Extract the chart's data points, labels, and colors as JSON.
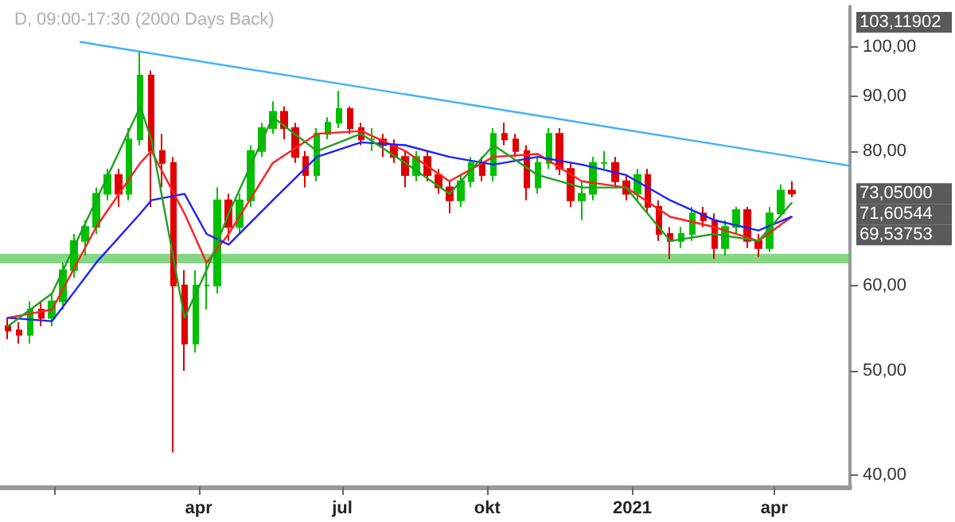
{
  "chart_data": {
    "type": "candlestick",
    "title": "D, 09:00-17:30 (2000 Days Back)",
    "x": [
      "2019-12-02",
      "2019-12-09",
      "2019-12-16",
      "2019-12-23",
      "2019-12-30",
      "2020-01-06",
      "2020-01-13",
      "2020-01-20",
      "2020-01-27",
      "2020-02-03",
      "2020-02-10",
      "2020-02-17",
      "2020-02-24",
      "2020-03-02",
      "2020-03-09",
      "2020-03-16",
      "2020-03-23",
      "2020-03-30",
      "2020-04-06",
      "2020-04-13",
      "2020-04-20",
      "2020-04-27",
      "2020-05-04",
      "2020-05-11",
      "2020-05-18",
      "2020-05-25",
      "2020-06-01",
      "2020-06-08",
      "2020-06-15",
      "2020-06-22",
      "2020-06-29",
      "2020-07-06",
      "2020-07-13",
      "2020-07-20",
      "2020-07-27",
      "2020-08-03",
      "2020-08-10",
      "2020-08-17",
      "2020-08-24",
      "2020-08-31",
      "2020-09-07",
      "2020-09-14",
      "2020-09-21",
      "2020-09-28",
      "2020-10-05",
      "2020-10-12",
      "2020-10-19",
      "2020-10-26",
      "2020-11-02",
      "2020-11-09",
      "2020-11-16",
      "2020-11-23",
      "2020-11-30",
      "2020-12-07",
      "2020-12-14",
      "2020-12-21",
      "2020-12-28",
      "2021-01-04",
      "2021-01-11",
      "2021-01-18",
      "2021-01-25",
      "2021-02-01",
      "2021-02-08",
      "2021-02-15",
      "2021-02-22",
      "2021-03-01",
      "2021-03-08",
      "2021-03-15",
      "2021-03-22",
      "2021-03-29",
      "2021-04-05",
      "2021-04-12"
    ],
    "ohlc": [
      [
        55,
        56,
        53.5,
        54.5
      ],
      [
        54.5,
        55.5,
        53,
        54
      ],
      [
        54,
        58,
        53,
        57
      ],
      [
        57,
        58,
        55,
        56
      ],
      [
        56,
        59,
        55,
        58
      ],
      [
        58,
        63,
        57,
        62
      ],
      [
        62,
        67,
        61,
        66
      ],
      [
        66,
        69,
        64,
        68
      ],
      [
        68,
        74,
        67,
        73
      ],
      [
        73,
        77,
        72,
        76
      ],
      [
        76,
        77,
        71,
        73
      ],
      [
        73,
        84,
        72,
        82
      ],
      [
        82,
        99,
        81,
        94
      ],
      [
        94,
        95,
        71,
        80
      ],
      [
        80,
        83,
        74,
        78
      ],
      [
        78,
        79,
        42,
        60
      ],
      [
        60,
        62,
        50,
        53
      ],
      [
        53,
        62,
        52,
        60
      ],
      [
        60,
        63,
        57,
        60
      ],
      [
        60,
        74,
        59,
        72
      ],
      [
        72,
        73,
        66,
        68
      ],
      [
        68,
        73,
        67,
        72
      ],
      [
        72,
        81,
        71,
        80
      ],
      [
        80,
        85,
        79,
        84
      ],
      [
        84,
        89,
        83,
        87
      ],
      [
        87,
        88,
        82,
        84
      ],
      [
        84,
        85,
        78,
        79
      ],
      [
        79,
        80,
        74,
        76
      ],
      [
        76,
        84,
        75,
        83
      ],
      [
        83,
        86,
        82,
        85
      ],
      [
        85,
        91,
        84,
        87.5
      ],
      [
        87.5,
        88,
        83,
        84
      ],
      [
        84,
        85,
        81,
        82
      ],
      [
        82,
        84,
        80,
        82
      ],
      [
        82,
        83,
        79,
        81
      ],
      [
        81,
        82,
        78,
        79
      ],
      [
        79,
        80,
        74,
        76
      ],
      [
        76,
        80,
        75,
        79
      ],
      [
        79,
        80,
        75,
        76
      ],
      [
        76,
        77,
        73,
        74
      ],
      [
        74,
        75,
        70,
        72
      ],
      [
        72,
        76,
        71,
        75
      ],
      [
        75,
        79,
        74,
        78
      ],
      [
        78,
        79,
        75,
        76
      ],
      [
        76,
        84,
        75,
        83
      ],
      [
        83,
        85,
        81,
        82
      ],
      [
        82,
        83,
        79,
        80
      ],
      [
        80,
        81,
        72,
        74
      ],
      [
        74,
        79,
        73,
        78
      ],
      [
        78,
        84,
        77,
        83
      ],
      [
        83,
        84,
        76,
        77
      ],
      [
        77,
        78,
        71,
        72
      ],
      [
        72,
        75,
        69,
        73
      ],
      [
        73,
        79,
        72,
        78
      ],
      [
        78,
        80,
        77,
        78
      ],
      [
        78,
        79,
        74,
        75
      ],
      [
        75,
        76,
        72,
        73
      ],
      [
        73,
        77,
        72,
        76
      ],
      [
        76,
        77,
        70,
        71
      ],
      [
        71,
        72,
        66,
        67
      ],
      [
        67,
        68,
        63.5,
        66
      ],
      [
        66,
        68,
        65,
        67
      ],
      [
        67,
        71,
        66,
        70
      ],
      [
        70,
        71,
        68,
        69
      ],
      [
        69,
        70,
        63.5,
        65
      ],
      [
        65,
        69,
        64,
        68
      ],
      [
        68,
        71,
        67,
        70.5
      ],
      [
        70.5,
        71,
        65,
        66
      ],
      [
        66,
        67,
        63.8,
        65
      ],
      [
        65,
        71,
        64.5,
        70
      ],
      [
        70,
        74.5,
        69.5,
        73.5
      ],
      [
        73.5,
        75,
        72.5,
        73.05
      ]
    ],
    "colors": [
      "#e00000",
      "#e00000",
      "#00c000",
      "#e00000",
      "#00c000",
      "#00c000",
      "#00c000",
      "#00c000",
      "#00c000",
      "#00c000",
      "#e00000",
      "#00c000",
      "#00c000",
      "#e00000",
      "#e00000",
      "#e00000",
      "#e00000",
      "#00c000",
      "#00c000",
      "#00c000",
      "#e00000",
      "#00c000",
      "#00c000",
      "#00c000",
      "#00c000",
      "#e00000",
      "#e00000",
      "#e00000",
      "#00c000",
      "#00c000",
      "#00c000",
      "#e00000",
      "#e00000",
      "#00c000",
      "#e00000",
      "#e00000",
      "#e00000",
      "#00c000",
      "#e00000",
      "#e00000",
      "#e00000",
      "#00c000",
      "#00c000",
      "#e00000",
      "#00c000",
      "#e00000",
      "#e00000",
      "#e00000",
      "#00c000",
      "#00c000",
      "#e00000",
      "#e00000",
      "#00c000",
      "#00c000",
      "#00c000",
      "#e00000",
      "#e00000",
      "#00c000",
      "#e00000",
      "#e00000",
      "#e00000",
      "#00c000",
      "#00c000",
      "#e00000",
      "#e00000",
      "#00c000",
      "#00c000",
      "#e00000",
      "#e00000",
      "#00c000",
      "#00c000",
      "#e00000"
    ],
    "series": [
      {
        "type": "line",
        "color": "#ff2020",
        "x": [
          "2019-12-02",
          "2019-12-30",
          "2020-01-27",
          "2020-02-24",
          "2020-03-02",
          "2020-03-23",
          "2020-04-06",
          "2020-04-20",
          "2020-05-18",
          "2020-06-15",
          "2020-07-13",
          "2020-08-10",
          "2020-09-07",
          "2020-10-05",
          "2020-11-02",
          "2020-11-30",
          "2020-12-28",
          "2021-01-25",
          "2021-02-22",
          "2021-03-22",
          "2021-04-12"
        ],
        "values": [
          56,
          57,
          68,
          78,
          80,
          70,
          63,
          67,
          78,
          83,
          83.5,
          80,
          75,
          79,
          79.5,
          75,
          74,
          69.5,
          68,
          66,
          69.5
        ]
      },
      {
        "type": "line",
        "color": "#2020ff",
        "x": [
          "2019-12-02",
          "2019-12-30",
          "2020-01-27",
          "2020-02-24",
          "2020-03-02",
          "2020-03-23",
          "2020-04-06",
          "2020-04-20",
          "2020-05-18",
          "2020-06-15",
          "2020-07-13",
          "2020-08-10",
          "2020-09-07",
          "2020-10-05",
          "2020-11-02",
          "2020-11-30",
          "2020-12-28",
          "2021-01-25",
          "2021-02-22",
          "2021-03-22",
          "2021-04-12"
        ],
        "values": [
          56,
          55.6,
          63,
          70,
          72,
          73,
          67,
          65.5,
          72,
          79,
          81.5,
          81,
          79,
          77.7,
          79,
          77.7,
          76,
          72,
          69,
          67.5,
          69.5
        ]
      },
      {
        "type": "line",
        "color": "#20a020",
        "x": [
          "2019-12-02",
          "2019-12-30",
          "2020-01-27",
          "2020-02-24",
          "2020-03-02",
          "2020-03-23",
          "2020-04-06",
          "2020-04-20",
          "2020-05-18",
          "2020-06-15",
          "2020-07-13",
          "2020-08-10",
          "2020-09-07",
          "2020-10-05",
          "2020-11-02",
          "2020-11-30",
          "2020-12-28",
          "2021-01-25",
          "2021-02-22",
          "2021-03-22",
          "2021-04-12"
        ],
        "values": [
          55,
          59,
          72,
          88,
          82,
          56,
          62,
          70,
          86,
          80,
          83,
          78,
          73,
          81,
          76,
          74,
          74,
          66,
          67,
          66,
          71.6
        ]
      },
      {
        "type": "line",
        "color": "#40b0ff",
        "x": [
          "2020-01-17",
          "2021-05-19"
        ],
        "values": [
          101,
          77.5
        ]
      }
    ],
    "bands": [
      {
        "axis": "y",
        "from": 62.9,
        "to": 64.2,
        "color": "#5cc85c"
      }
    ],
    "annotations": [
      "103,11902",
      "73,05000",
      "71,60544",
      "69,53753"
    ],
    "xlim": [
      "2019-11-27",
      "2021-05-19"
    ],
    "xticks": [
      {
        "value": "2020-01-01",
        "label": null
      },
      {
        "value": "2020-04-01",
        "label": "apr"
      },
      {
        "value": "2020-07-01",
        "label": "jul"
      },
      {
        "value": "2020-10-01",
        "label": "okt"
      },
      {
        "value": "2021-01-01",
        "label": "2021"
      },
      {
        "value": "2021-04-01",
        "label": "apr"
      }
    ],
    "ylim": [
      39,
      109
    ],
    "yticks": [
      {
        "value": 40,
        "label": "40,00"
      },
      {
        "value": 50,
        "label": "50,00"
      },
      {
        "value": 60,
        "label": "60,00"
      },
      {
        "value": 80,
        "label": "80,00"
      },
      {
        "value": 90,
        "label": "90,00"
      },
      {
        "value": 100,
        "label": "100,00"
      }
    ],
    "log": true,
    "grid": false
  }
}
